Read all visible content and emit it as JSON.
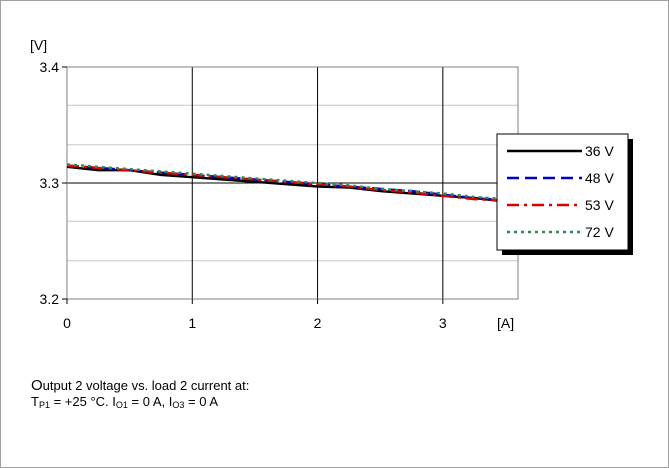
{
  "chart_data": {
    "type": "line",
    "y_unit": "[V]",
    "x_unit": "[A]",
    "xlim": [
      0,
      3.6
    ],
    "ylim": [
      3.2,
      3.4
    ],
    "x_ticks": [
      "0",
      "1",
      "2",
      "3"
    ],
    "y_ticks": [
      "3.2",
      "3.3",
      "3.4"
    ],
    "y_tick_values": [
      3.2,
      3.3,
      3.4
    ],
    "x_tick_values": [
      0,
      1,
      2,
      3
    ],
    "x_gridlines": [
      1,
      2,
      3
    ],
    "y_gridlines_major": [
      3.3
    ],
    "y_gridlines_minor": [
      3.233,
      3.267,
      3.333,
      3.367
    ],
    "legend_position": "right",
    "series": [
      {
        "name": "36 V",
        "color": "#000000",
        "dash": "solid",
        "x": [
          0,
          0.25,
          0.5,
          0.75,
          1.0,
          1.25,
          1.5,
          1.75,
          2.0,
          2.25,
          2.5,
          2.75,
          3.0,
          3.25,
          3.5,
          3.6
        ],
        "y": [
          3.314,
          3.311,
          3.311,
          3.307,
          3.305,
          3.303,
          3.301,
          3.299,
          3.297,
          3.296,
          3.293,
          3.291,
          3.289,
          3.287,
          3.284,
          3.283
        ]
      },
      {
        "name": "48 V",
        "color": "#0000cc",
        "dash": "dash",
        "x": [
          0,
          0.25,
          0.5,
          0.75,
          1.0,
          1.25,
          1.5,
          1.75,
          2.0,
          2.25,
          2.5,
          2.75,
          3.0,
          3.25,
          3.5,
          3.6
        ],
        "y": [
          3.315,
          3.313,
          3.311,
          3.309,
          3.307,
          3.305,
          3.303,
          3.301,
          3.299,
          3.297,
          3.295,
          3.293,
          3.29,
          3.287,
          3.285,
          3.283
        ]
      },
      {
        "name": "53 V",
        "color": "#dd0000",
        "dash": "dashdot",
        "x": [
          0,
          0.25,
          0.5,
          0.75,
          1.0,
          1.25,
          1.5,
          1.75,
          2.0,
          2.25,
          2.5,
          2.75,
          3.0,
          3.25,
          3.5,
          3.6
        ],
        "y": [
          3.315,
          3.313,
          3.311,
          3.309,
          3.307,
          3.305,
          3.303,
          3.301,
          3.299,
          3.297,
          3.294,
          3.292,
          3.289,
          3.286,
          3.285,
          3.283
        ]
      },
      {
        "name": "72 V",
        "color": "#2e8b57",
        "dash": "dot",
        "x": [
          0,
          0.25,
          0.5,
          0.75,
          1.0,
          1.25,
          1.5,
          1.75,
          2.0,
          2.25,
          2.5,
          2.75,
          3.0,
          3.25,
          3.5,
          3.6
        ],
        "y": [
          3.316,
          3.314,
          3.312,
          3.31,
          3.308,
          3.306,
          3.304,
          3.302,
          3.3,
          3.298,
          3.295,
          3.293,
          3.291,
          3.288,
          3.286,
          3.284
        ]
      }
    ]
  },
  "caption": {
    "line1_first": "O",
    "line1_rest": "utput 2 voltage vs. load 2 current at:",
    "t_symbol": "T",
    "t_sub": "P1",
    "t_value": " = +25 °C. ",
    "i1_symbol": "I",
    "i1_sub": "O1",
    "i1_value": " = 0 A, ",
    "i3_symbol": "I",
    "i3_sub": "O3",
    "i3_value": " = 0 A"
  }
}
